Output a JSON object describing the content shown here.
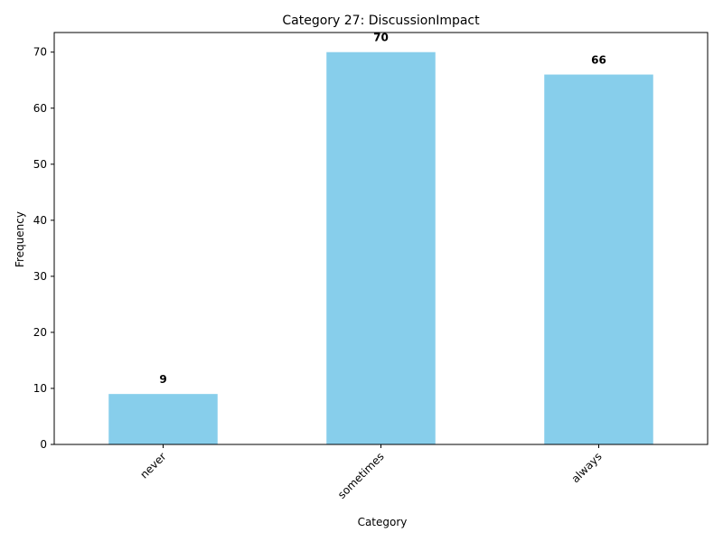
{
  "chart_data": {
    "type": "bar",
    "title": "Category 27: DiscussionImpact",
    "xlabel": "Category",
    "ylabel": "Frequency",
    "categories": [
      "never",
      "sometimes",
      "always"
    ],
    "values": [
      9,
      70,
      66
    ],
    "ylim": [
      0,
      73.5
    ],
    "yticks": [
      0,
      10,
      20,
      30,
      40,
      50,
      60,
      70
    ],
    "bar_color": "#87CEEB",
    "grid": false,
    "legend": "none",
    "xtick_rotation": 45
  }
}
